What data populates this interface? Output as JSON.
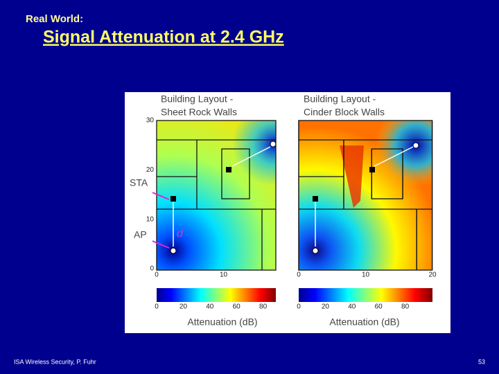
{
  "header": {
    "kicker": "Real World:",
    "title": "Signal Attenuation at 2.4 GHz"
  },
  "figure": {
    "labels": {
      "sta": "STA",
      "ap": "AP",
      "d": "d"
    },
    "panels": [
      {
        "title": [
          "Building Layout -",
          "Sheet Rock Walls"
        ],
        "yticks": [
          0,
          10,
          20,
          30
        ],
        "xticks": [
          0,
          10
        ],
        "colorbar_ticks": [
          0,
          20,
          40,
          60,
          80
        ],
        "colorbar_label": "Attenuation (dB)"
      },
      {
        "title": [
          "Building Layout -",
          "Cinder Block Walls"
        ],
        "xticks": [
          0,
          10,
          20
        ],
        "colorbar_ticks": [
          0,
          20,
          40,
          60,
          80
        ],
        "colorbar_label": "Attenuation (dB)"
      }
    ]
  },
  "footer": {
    "left": "ISA Wireless Security, P. Fuhr",
    "page": 53
  }
}
